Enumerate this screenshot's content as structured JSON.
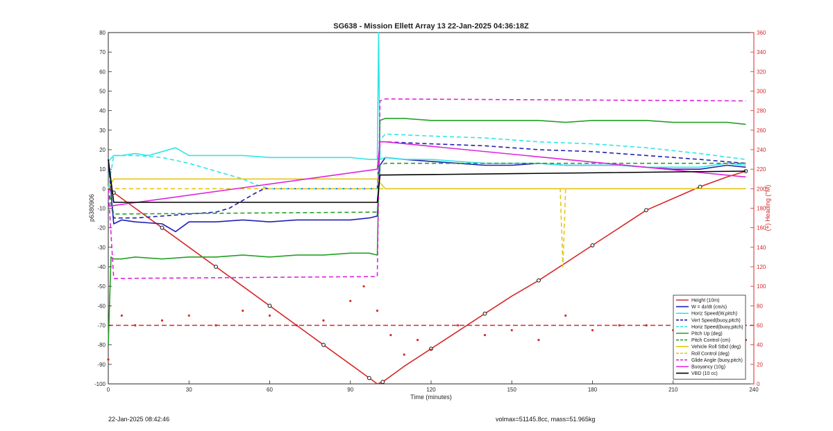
{
  "footer": {
    "timestamp": "22-Jan-2025 08:42:46",
    "mass_info": "volmax=51145.8cc, mass=51.965kg"
  },
  "chart_data": {
    "type": "line",
    "title": "SG638 - Mission Ellett Array 13 22-Jan-2025 04:36:18Z",
    "xlabel": "Time (minutes)",
    "ylabel": "p6380906",
    "y2label": "(+) Heading (°M)",
    "xlim": [
      0,
      240
    ],
    "ylim": [
      -100,
      80
    ],
    "y2lim": [
      0,
      360
    ],
    "xticks": [
      0,
      30,
      60,
      90,
      120,
      150,
      180,
      210,
      240
    ],
    "yticks": [
      -100,
      -90,
      -80,
      -70,
      -60,
      -50,
      -40,
      -30,
      -20,
      -10,
      0,
      10,
      20,
      30,
      40,
      50,
      60,
      70,
      80
    ],
    "y2ticks": [
      0,
      20,
      40,
      60,
      80,
      100,
      120,
      140,
      160,
      180,
      200,
      220,
      240,
      260,
      280,
      300,
      320,
      340,
      360
    ],
    "grid": false,
    "legend_position": "bottom-right",
    "legend": [
      {
        "label": "Height (10m)",
        "color": "#d62728",
        "style": "solid"
      },
      {
        "label": "W = dz/dt (cm/s)",
        "color": "#1f1fb4",
        "style": "solid"
      },
      {
        "label": "Horiz Speed(W,pitch)",
        "color": "#2ee6e6",
        "style": "solid"
      },
      {
        "label": "Vert Speed(buoy,pitch)",
        "color": "#1f1fb4",
        "style": "dashed"
      },
      {
        "label": "Horiz Speed(buoy,pitch)",
        "color": "#2ee6e6",
        "style": "dashed"
      },
      {
        "label": "Pitch Up (deg)",
        "color": "#22a022",
        "style": "solid"
      },
      {
        "label": "Pitch Control (cm)",
        "color": "#22a022",
        "style": "dashed"
      },
      {
        "label": "Vehicle Roll Stbd (deg)",
        "color": "#e6c619",
        "style": "solid"
      },
      {
        "label": "Roll Control (deg)",
        "color": "#e6c619",
        "style": "dashed"
      },
      {
        "label": "Glide Angle (buoy,pitch)",
        "color": "#dd22dd",
        "style": "dashed"
      },
      {
        "label": "Buoyancy (10g)",
        "color": "#dd22dd",
        "style": "solid"
      },
      {
        "label": "VBD (10 cc)",
        "color": "#000000",
        "style": "solid"
      }
    ],
    "series": [
      {
        "name": "Height (10m)",
        "x": [
          0,
          2,
          10,
          20,
          30,
          40,
          50,
          60,
          70,
          80,
          90,
          97,
          100,
          102,
          110,
          120,
          130,
          140,
          150,
          160,
          170,
          180,
          190,
          200,
          210,
          220,
          230,
          237
        ],
        "y": [
          0,
          -2,
          -10,
          -20,
          -30,
          -40,
          -50,
          -60,
          -70,
          -80,
          -90,
          -97,
          -100,
          -99,
          -91,
          -82,
          -73,
          -64,
          -55,
          -47,
          -38,
          -29,
          -20,
          -11,
          -5,
          1,
          6,
          9
        ]
      },
      {
        "name": "W = dz/dt (cm/s)",
        "x": [
          0,
          2,
          5,
          10,
          20,
          25,
          30,
          40,
          50,
          60,
          70,
          80,
          90,
          97,
          100,
          101,
          103,
          110,
          120,
          130,
          140,
          150,
          160,
          170,
          180,
          190,
          200,
          210,
          220,
          230,
          237
        ],
        "y": [
          15,
          -18,
          -16,
          -17,
          -18,
          -22,
          -17,
          -17,
          -16,
          -17,
          -16,
          -16,
          -16,
          -15,
          -14,
          12,
          16,
          15,
          14,
          13,
          12,
          12,
          13,
          12,
          12,
          12,
          11,
          10,
          10,
          12,
          11
        ]
      },
      {
        "name": "Horiz Speed(W,pitch)",
        "x": [
          0,
          2,
          5,
          10,
          15,
          20,
          25,
          30,
          40,
          50,
          60,
          70,
          80,
          90,
          97,
          100,
          100.5,
          101,
          103,
          110,
          120,
          130,
          140,
          150,
          160,
          170,
          180,
          190,
          200,
          210,
          220,
          230,
          237
        ],
        "y": [
          14,
          17,
          17,
          18,
          17,
          19,
          21,
          17,
          17,
          17,
          16,
          16,
          16,
          16,
          15,
          15,
          80,
          15,
          16,
          15,
          15,
          14,
          13,
          13,
          13,
          12,
          12,
          12,
          11,
          11,
          11,
          13,
          12
        ]
      },
      {
        "name": "Vert Speed(buoy,pitch)",
        "x": [
          0,
          2,
          10,
          20,
          30,
          40,
          45,
          50,
          55,
          58,
          60,
          100,
          101,
          103,
          120,
          140,
          160,
          180,
          200,
          220,
          237
        ],
        "y": [
          0,
          -15,
          -15,
          -14,
          -13,
          -12,
          -10,
          -6,
          -2,
          0,
          0,
          0,
          24,
          24,
          23,
          22,
          20,
          19,
          17,
          15,
          13
        ]
      },
      {
        "name": "Horiz Speed(buoy,pitch)",
        "x": [
          0,
          2,
          10,
          20,
          30,
          40,
          50,
          55,
          60,
          100,
          101,
          103,
          120,
          140,
          160,
          180,
          200,
          220,
          237
        ],
        "y": [
          0,
          17,
          17,
          16,
          13,
          9,
          5,
          2,
          0,
          0,
          25,
          28,
          27,
          26,
          24,
          23,
          21,
          18,
          15
        ]
      },
      {
        "name": "Pitch Up (deg)",
        "x": [
          0,
          1,
          2,
          5,
          10,
          20,
          30,
          40,
          50,
          60,
          70,
          80,
          90,
          97,
          100,
          101,
          103,
          110,
          120,
          130,
          140,
          150,
          160,
          170,
          180,
          190,
          200,
          210,
          220,
          230,
          237
        ],
        "y": [
          -80,
          -35,
          -36,
          -36,
          -35,
          -36,
          -35,
          -35,
          -34,
          -35,
          -34,
          -34,
          -33,
          -33,
          -34,
          35,
          36,
          36,
          35,
          35,
          35,
          35,
          35,
          34,
          35,
          35,
          35,
          34,
          34,
          34,
          33
        ]
      },
      {
        "name": "Pitch Control (cm)",
        "x": [
          0,
          2,
          100,
          101,
          103,
          237
        ],
        "y": [
          0,
          -13,
          -12,
          12,
          13,
          13
        ]
      },
      {
        "name": "Vehicle Roll Stbd (deg)",
        "x": [
          0,
          2,
          100,
          101,
          103,
          237
        ],
        "y": [
          0,
          5,
          5,
          3,
          0,
          0
        ]
      },
      {
        "name": "Roll Control (deg)",
        "x": [
          0,
          2,
          100,
          101,
          103,
          168,
          169,
          170,
          237
        ],
        "y": [
          0,
          0,
          0,
          0,
          0,
          0,
          -40,
          0,
          0
        ]
      },
      {
        "name": "Glide Angle (buoy,pitch)",
        "x": [
          0,
          2,
          100,
          101,
          103,
          237
        ],
        "y": [
          0,
          -46,
          -45,
          45,
          46,
          45
        ]
      },
      {
        "name": "Buoyancy (10g)",
        "x": [
          0,
          100,
          101,
          103,
          237
        ],
        "y": [
          -9,
          10,
          24,
          24,
          6
        ]
      },
      {
        "name": "VBD (10 cc)",
        "x": [
          0,
          2,
          100,
          101,
          103,
          237
        ],
        "y": [
          15,
          -7,
          -7,
          7,
          7,
          9
        ]
      },
      {
        "name": "Heading",
        "axis": "right",
        "x": [
          0,
          5,
          10,
          20,
          30,
          40,
          50,
          60,
          70,
          80,
          90,
          95,
          100,
          105,
          110,
          115,
          120,
          130,
          140,
          150,
          160,
          170,
          180,
          190,
          200,
          210,
          220,
          230,
          237
        ],
        "y": [
          25,
          70,
          60,
          65,
          70,
          60,
          75,
          70,
          60,
          65,
          85,
          100,
          75,
          50,
          30,
          45,
          35,
          60,
          50,
          55,
          45,
          70,
          55,
          60,
          60,
          55,
          45,
          40,
          45
        ],
        "reference_y": 60
      }
    ]
  }
}
